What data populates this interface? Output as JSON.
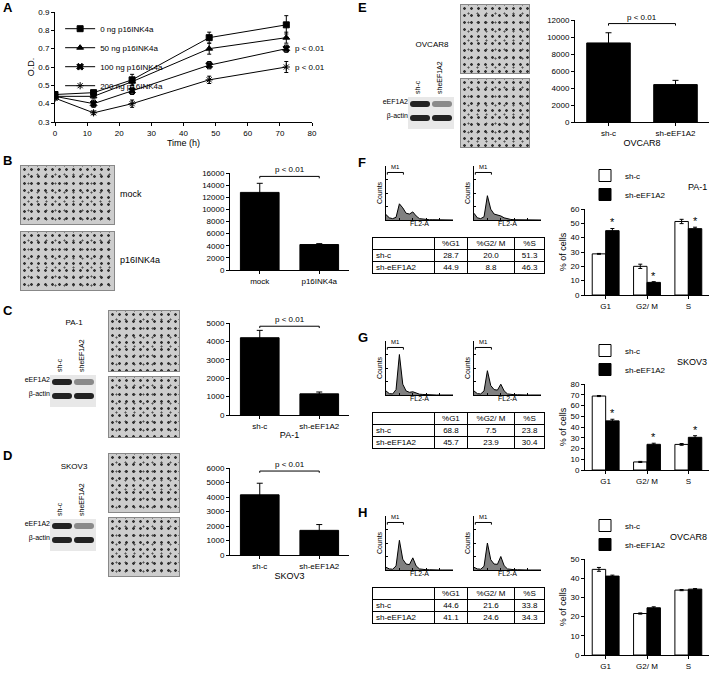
{
  "chart_data": [
    {
      "panel": "A",
      "type": "line",
      "x_label": "Time (h)",
      "y_label": "O.D.",
      "x": [
        0,
        12,
        24,
        48,
        72
      ],
      "xlim": [
        0,
        80
      ],
      "xticks": [
        0,
        10,
        20,
        30,
        40,
        50,
        60,
        70,
        80
      ],
      "ylim": [
        0.3,
        0.9
      ],
      "yticks": [
        0.3,
        0.4,
        0.5,
        0.6,
        0.7,
        0.8,
        0.9
      ],
      "legend": "top-left",
      "series": [
        {
          "name": "0 ng p16INK4a",
          "color": "#000000",
          "marker": "square",
          "values": [
            0.45,
            0.46,
            0.53,
            0.76,
            0.83
          ],
          "errors": [
            0.01,
            0.01,
            0.03,
            0.03,
            0.05
          ]
        },
        {
          "name": "50 ng p16INK4a",
          "color": "#000000",
          "marker": "triangle",
          "values": [
            0.44,
            0.44,
            0.52,
            0.7,
            0.76
          ],
          "errors": [
            0.01,
            0.01,
            0.02,
            0.03,
            0.03
          ]
        },
        {
          "name": "100 ng p16INK4a",
          "color": "#000000",
          "marker": "cross",
          "values": [
            0.44,
            0.4,
            0.47,
            0.61,
            0.7
          ],
          "errors": [
            0.01,
            0.02,
            0.02,
            0.02,
            0.02
          ]
        },
        {
          "name": "200 ng p16INK4a",
          "color": "#000000",
          "marker": "asterisk",
          "values": [
            0.43,
            0.35,
            0.4,
            0.53,
            0.6
          ],
          "errors": [
            0.01,
            0.01,
            0.02,
            0.02,
            0.03
          ]
        }
      ],
      "annotations": [
        {
          "series": "100 ng p16INK4a",
          "x": 72,
          "text": "p < 0.01"
        },
        {
          "series": "200 ng p16INK4a",
          "x": 72,
          "text": "p < 0.01"
        }
      ]
    },
    {
      "panel": "B",
      "type": "bar",
      "categories": [
        "mock",
        "p16INK4a"
      ],
      "values": [
        12800,
        4200
      ],
      "errors": [
        1500,
        150
      ],
      "color": "#000000",
      "ylim": [
        0,
        16000
      ],
      "yticks": [
        0,
        2000,
        4000,
        6000,
        8000,
        10000,
        12000,
        14000,
        16000
      ],
      "annotations": [
        {
          "text": "p < 0.01"
        }
      ]
    },
    {
      "panel": "C",
      "type": "bar",
      "x_label": "PA-1",
      "categories": [
        "sh-c",
        "sh-eEF1A2"
      ],
      "values": [
        4200,
        1150
      ],
      "errors": [
        400,
        100
      ],
      "color": "#000000",
      "ylim": [
        0,
        5000
      ],
      "yticks": [
        0,
        1000,
        2000,
        3000,
        4000,
        5000
      ],
      "annotations": [
        {
          "text": "p < 0.01"
        }
      ]
    },
    {
      "panel": "D",
      "type": "bar",
      "x_label": "SKOV3",
      "categories": [
        "sh-c",
        "sh-eEF1A2"
      ],
      "values": [
        4150,
        1700
      ],
      "errors": [
        800,
        400
      ],
      "color": "#000000",
      "ylim": [
        0,
        6000
      ],
      "yticks": [
        0,
        1000,
        2000,
        3000,
        4000,
        5000,
        6000
      ],
      "annotations": [
        {
          "text": "p < 0.01"
        }
      ]
    },
    {
      "panel": "E",
      "type": "bar",
      "x_label": "OVCAR8",
      "categories": [
        "sh-c",
        "sh-eEF1A2"
      ],
      "values": [
        9300,
        4400
      ],
      "errors": [
        1200,
        500
      ],
      "color": "#000000",
      "ylim": [
        0,
        12000
      ],
      "yticks": [
        0,
        2000,
        4000,
        6000,
        8000,
        10000,
        12000
      ],
      "annotations": [
        {
          "text": "p < 0.01"
        }
      ]
    },
    {
      "panel": "F",
      "type": "area",
      "x_label": "FL2-A",
      "y_label": "Counts",
      "color": "#808080",
      "x": [
        0,
        50,
        100,
        150,
        200,
        250,
        300,
        350,
        400,
        450,
        500,
        550,
        600,
        650,
        700,
        750,
        800,
        850,
        900,
        950,
        1000
      ],
      "values": [
        20,
        8,
        5,
        10,
        60,
        45,
        25,
        22,
        30,
        15,
        5,
        3,
        2,
        1,
        1,
        1,
        0,
        0,
        0,
        0,
        0
      ],
      "xlim": [
        0,
        1000
      ],
      "xticks": [
        0,
        200,
        400,
        600,
        800,
        1000
      ],
      "ylim": [
        0,
        200
      ],
      "yticks": [
        0,
        50,
        100,
        150,
        200
      ],
      "tick_labels": false,
      "gate": {
        "label": "M1",
        "range": [
          20,
          260
        ]
      }
    },
    {
      "panel": "F",
      "type": "area",
      "x_label": "FL2-A",
      "y_label": "Counts",
      "color": "#808080",
      "x": [
        0,
        50,
        100,
        150,
        200,
        250,
        300,
        350,
        400,
        450,
        500,
        550,
        600,
        650,
        700,
        750,
        800,
        850,
        900,
        950,
        1000
      ],
      "values": [
        25,
        8,
        5,
        12,
        90,
        40,
        22,
        18,
        15,
        8,
        4,
        2,
        1,
        1,
        1,
        0,
        0,
        0,
        0,
        0,
        0
      ],
      "xlim": [
        0,
        1000
      ],
      "xticks": [
        0,
        200,
        400,
        600,
        800,
        1000
      ],
      "ylim": [
        0,
        200
      ],
      "yticks": [
        0,
        50,
        100,
        150,
        200
      ],
      "tick_labels": false,
      "gate": {
        "label": "M1",
        "range": [
          20,
          260
        ]
      }
    },
    {
      "panel": "F",
      "type": "bar",
      "title": "PA-1",
      "y_label": "% of cells",
      "categories": [
        "G1",
        "G2/ M",
        "S"
      ],
      "legend": "top-left",
      "series": [
        {
          "name": "sh-c",
          "color": "#ffffff",
          "values": [
            28.7,
            20.0,
            51.3
          ],
          "errors": [
            0.3,
            1.5,
            1.5
          ]
        },
        {
          "name": "sh-eEF1A2",
          "color": "#000000",
          "values": [
            44.9,
            8.8,
            46.3
          ],
          "errors": [
            1.5,
            0.5,
            1.0
          ]
        }
      ],
      "ylim": [
        0,
        60
      ],
      "yticks": [
        0,
        10,
        20,
        30,
        40,
        50,
        60
      ],
      "annotations": [
        {
          "series": "sh-eEF1A2",
          "category": "G1",
          "text": "*"
        },
        {
          "series": "sh-eEF1A2",
          "category": "G2/ M",
          "text": "*"
        },
        {
          "series": "sh-eEF1A2",
          "category": "S",
          "text": "*"
        }
      ]
    },
    {
      "panel": "G",
      "type": "area",
      "x_label": "FL2-A",
      "y_label": "Counts",
      "color": "#808080",
      "x": [
        0,
        50,
        100,
        150,
        200,
        250,
        300,
        350,
        400,
        450,
        500,
        550,
        600,
        650,
        700,
        750,
        800,
        850,
        900,
        950,
        1000
      ],
      "values": [
        15,
        5,
        4,
        20,
        150,
        40,
        15,
        10,
        12,
        6,
        3,
        2,
        1,
        1,
        0,
        0,
        0,
        0,
        0,
        0,
        0
      ],
      "xlim": [
        0,
        1000
      ],
      "xticks": [
        0,
        200,
        400,
        600,
        800,
        1000
      ],
      "ylim": [
        0,
        200
      ],
      "yticks": [
        0,
        50,
        100,
        150,
        200
      ],
      "tick_labels": false,
      "gate": {
        "label": "M1",
        "range": [
          20,
          260
        ]
      }
    },
    {
      "panel": "G",
      "type": "area",
      "x_label": "FL2-A",
      "y_label": "Counts",
      "color": "#808080",
      "x": [
        0,
        50,
        100,
        150,
        200,
        250,
        300,
        350,
        400,
        450,
        500,
        550,
        600,
        650,
        700,
        750,
        800,
        850,
        900,
        950,
        1000
      ],
      "values": [
        15,
        5,
        4,
        15,
        90,
        35,
        20,
        18,
        40,
        15,
        4,
        2,
        1,
        1,
        0,
        0,
        0,
        0,
        0,
        0,
        0
      ],
      "xlim": [
        0,
        1000
      ],
      "xticks": [
        0,
        200,
        400,
        600,
        800,
        1000
      ],
      "ylim": [
        0,
        200
      ],
      "yticks": [
        0,
        50,
        100,
        150,
        200
      ],
      "tick_labels": false,
      "gate": {
        "label": "M1",
        "range": [
          20,
          260
        ]
      }
    },
    {
      "panel": "G",
      "type": "bar",
      "title": "SKOV3",
      "y_label": "% of cells",
      "categories": [
        "G1",
        "G2/ M",
        "S"
      ],
      "legend": "top-left",
      "series": [
        {
          "name": "sh-c",
          "color": "#ffffff",
          "values": [
            68.8,
            7.5,
            23.8
          ],
          "errors": [
            0.5,
            0.5,
            0.8
          ]
        },
        {
          "name": "sh-eEF1A2",
          "color": "#000000",
          "values": [
            45.7,
            23.9,
            30.4
          ],
          "errors": [
            1.5,
            1.0,
            1.5
          ]
        }
      ],
      "ylim": [
        0,
        80
      ],
      "yticks": [
        0,
        10,
        20,
        30,
        40,
        50,
        60,
        70,
        80
      ],
      "annotations": [
        {
          "series": "sh-eEF1A2",
          "category": "G1",
          "text": "*"
        },
        {
          "series": "sh-eEF1A2",
          "category": "G2/ M",
          "text": "*"
        },
        {
          "series": "sh-eEF1A2",
          "category": "S",
          "text": "*"
        }
      ]
    },
    {
      "panel": "H",
      "type": "area",
      "x_label": "FL2-A",
      "y_label": "Counts",
      "color": "#808080",
      "x": [
        0,
        50,
        100,
        150,
        200,
        250,
        300,
        350,
        400,
        450,
        500,
        550,
        600,
        650,
        700,
        750,
        800,
        850,
        900,
        950,
        1000
      ],
      "values": [
        10,
        4,
        3,
        15,
        110,
        40,
        22,
        20,
        45,
        15,
        4,
        2,
        1,
        1,
        0,
        0,
        0,
        0,
        0,
        0,
        0
      ],
      "xlim": [
        0,
        1000
      ],
      "xticks": [
        0,
        200,
        400,
        600,
        800,
        1000
      ],
      "ylim": [
        0,
        200
      ],
      "yticks": [
        0,
        50,
        100,
        150,
        200
      ],
      "tick_labels": false,
      "gate": {
        "label": "M1",
        "range": [
          20,
          260
        ]
      }
    },
    {
      "panel": "H",
      "type": "area",
      "x_label": "FL2-A",
      "y_label": "Counts",
      "color": "#808080",
      "x": [
        0,
        50,
        100,
        150,
        200,
        250,
        300,
        350,
        400,
        450,
        500,
        550,
        600,
        650,
        700,
        750,
        800,
        850,
        900,
        950,
        1000
      ],
      "values": [
        10,
        4,
        3,
        14,
        100,
        38,
        22,
        21,
        50,
        16,
        4,
        2,
        1,
        1,
        0,
        0,
        0,
        0,
        0,
        0,
        0
      ],
      "xlim": [
        0,
        1000
      ],
      "xticks": [
        0,
        200,
        400,
        600,
        800,
        1000
      ],
      "ylim": [
        0,
        200
      ],
      "yticks": [
        0,
        50,
        100,
        150,
        200
      ],
      "tick_labels": false,
      "gate": {
        "label": "M1",
        "range": [
          20,
          260
        ]
      }
    },
    {
      "panel": "H",
      "type": "bar",
      "title": "OVCAR8",
      "y_label": "% of cells",
      "categories": [
        "G1",
        "G2/ M",
        "S"
      ],
      "legend": "top-left",
      "series": [
        {
          "name": "sh-c",
          "color": "#ffffff",
          "values": [
            44.6,
            21.6,
            33.8
          ],
          "errors": [
            1.0,
            0.3,
            0.3
          ]
        },
        {
          "name": "sh-eEF1A2",
          "color": "#000000",
          "values": [
            41.1,
            24.6,
            34.3
          ],
          "errors": [
            0.5,
            0.5,
            0.3
          ]
        }
      ],
      "ylim": [
        0,
        50
      ],
      "yticks": [
        0,
        10,
        20,
        30,
        40,
        50
      ]
    }
  ],
  "images": [
    {
      "panel": "B",
      "labels": [
        "mock",
        "p16INK4a"
      ]
    }
  ],
  "blots": [
    {
      "panel": "C",
      "title": "PA-1",
      "lanes": [
        "sh-c",
        "sheEF1A2"
      ],
      "rows": [
        "eEF1A2",
        "β-actin"
      ]
    },
    {
      "panel": "D",
      "title": "SKOV3",
      "lanes": [
        "sh-c",
        "sheEF1A2"
      ],
      "rows": [
        "eEF1A2",
        "β-actin"
      ]
    },
    {
      "panel": "E",
      "title": "OVCAR8",
      "lanes": [
        "sh-c",
        "sheEF1A2"
      ],
      "rows": [
        "eEF1A2",
        "β-actin"
      ]
    }
  ],
  "tables": [
    {
      "panel": "F",
      "columns": [
        "%G1",
        "%G2/ M",
        "%S"
      ],
      "rows": [
        {
          "label": "sh-c",
          "cells": [
            "28.7",
            "20.0",
            "51.3"
          ]
        },
        {
          "label": "sh-eEF1A2",
          "cells": [
            "44.9",
            "8.8",
            "46.3"
          ]
        }
      ]
    },
    {
      "panel": "G",
      "columns": [
        "%G1",
        "%G2/ M",
        "%S"
      ],
      "rows": [
        {
          "label": "sh-c",
          "cells": [
            "68.8",
            "7.5",
            "23.8"
          ]
        },
        {
          "label": "sh-eEF1A2",
          "cells": [
            "45.7",
            "23.9",
            "30.4"
          ]
        }
      ]
    },
    {
      "panel": "H",
      "columns": [
        "%G1",
        "%G2/ M",
        "%S"
      ],
      "rows": [
        {
          "label": "sh-c",
          "cells": [
            "44.6",
            "21.6",
            "33.8"
          ]
        },
        {
          "label": "sh-eEF1A2",
          "cells": [
            "41.1",
            "24.6",
            "34.3"
          ]
        }
      ]
    }
  ]
}
